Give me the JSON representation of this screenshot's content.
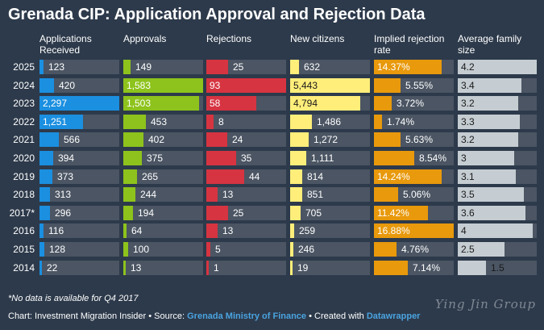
{
  "chart_data": {
    "type": "table",
    "title": "Grenada CIP: Application Approval and Rejection Data",
    "columns": [
      {
        "key": "applications",
        "header": "Applications Received",
        "color": "#1b8fe0",
        "max": 2297
      },
      {
        "key": "approvals",
        "header": "Approvals",
        "color": "#8dc31c",
        "max": 1583
      },
      {
        "key": "rejections",
        "header": "Rejections",
        "color": "#d63441",
        "max": 93
      },
      {
        "key": "new_citizens",
        "header": "New citizens",
        "color": "#ffee7a",
        "max": 5443
      },
      {
        "key": "rejection_rate",
        "header": "Implied rejection rate",
        "color": "#e8990c",
        "max": 16.88
      },
      {
        "key": "family_size",
        "header": "Average family size",
        "color": "#c5cdd2",
        "max": 4.2
      }
    ],
    "rows": [
      {
        "year": "2025",
        "applications": "123",
        "approvals": "149",
        "rejections": "25",
        "new_citizens": "632",
        "rejection_rate": "14.37%",
        "family_size": "4.2"
      },
      {
        "year": "2024",
        "applications": "420",
        "approvals": "1,583",
        "rejections": "93",
        "new_citizens": "5,443",
        "rejection_rate": "5.55%",
        "family_size": "3.4"
      },
      {
        "year": "2023",
        "applications": "2,297",
        "approvals": "1,503",
        "rejections": "58",
        "new_citizens": "4,794",
        "rejection_rate": "3.72%",
        "family_size": "3.2"
      },
      {
        "year": "2022",
        "applications": "1,251",
        "approvals": "453",
        "rejections": "8",
        "new_citizens": "1,486",
        "rejection_rate": "1.74%",
        "family_size": "3.3"
      },
      {
        "year": "2021",
        "applications": "566",
        "approvals": "402",
        "rejections": "24",
        "new_citizens": "1,272",
        "rejection_rate": "5.63%",
        "family_size": "3.2"
      },
      {
        "year": "2020",
        "applications": "394",
        "approvals": "375",
        "rejections": "35",
        "new_citizens": "1,111",
        "rejection_rate": "8.54%",
        "family_size": "3"
      },
      {
        "year": "2019",
        "applications": "373",
        "approvals": "265",
        "rejections": "44",
        "new_citizens": "814",
        "rejection_rate": "14.24%",
        "family_size": "3.1"
      },
      {
        "year": "2018",
        "applications": "313",
        "approvals": "244",
        "rejections": "13",
        "new_citizens": "851",
        "rejection_rate": "5.06%",
        "family_size": "3.5"
      },
      {
        "year": "2017*",
        "applications": "296",
        "approvals": "194",
        "rejections": "25",
        "new_citizens": "705",
        "rejection_rate": "11.42%",
        "family_size": "3.6"
      },
      {
        "year": "2016",
        "applications": "116",
        "approvals": "64",
        "rejections": "13",
        "new_citizens": "259",
        "rejection_rate": "16.88%",
        "family_size": "4"
      },
      {
        "year": "2015",
        "applications": "128",
        "approvals": "100",
        "rejections": "5",
        "new_citizens": "246",
        "rejection_rate": "4.76%",
        "family_size": "2.5"
      },
      {
        "year": "2014",
        "applications": "22",
        "approvals": "13",
        "rejections": "1",
        "new_citizens": "19",
        "rejection_rate": "7.14%",
        "family_size": "1.5"
      }
    ],
    "footnote": "*No data is available for Q4 2017",
    "credits": {
      "prefix": "Chart: Investment Migration Insider • Source: ",
      "source": "Grenada Ministry of Finance",
      "middle": " • Created with ",
      "tool": "Datawrapper"
    },
    "watermark": "Ying Jin Group"
  }
}
